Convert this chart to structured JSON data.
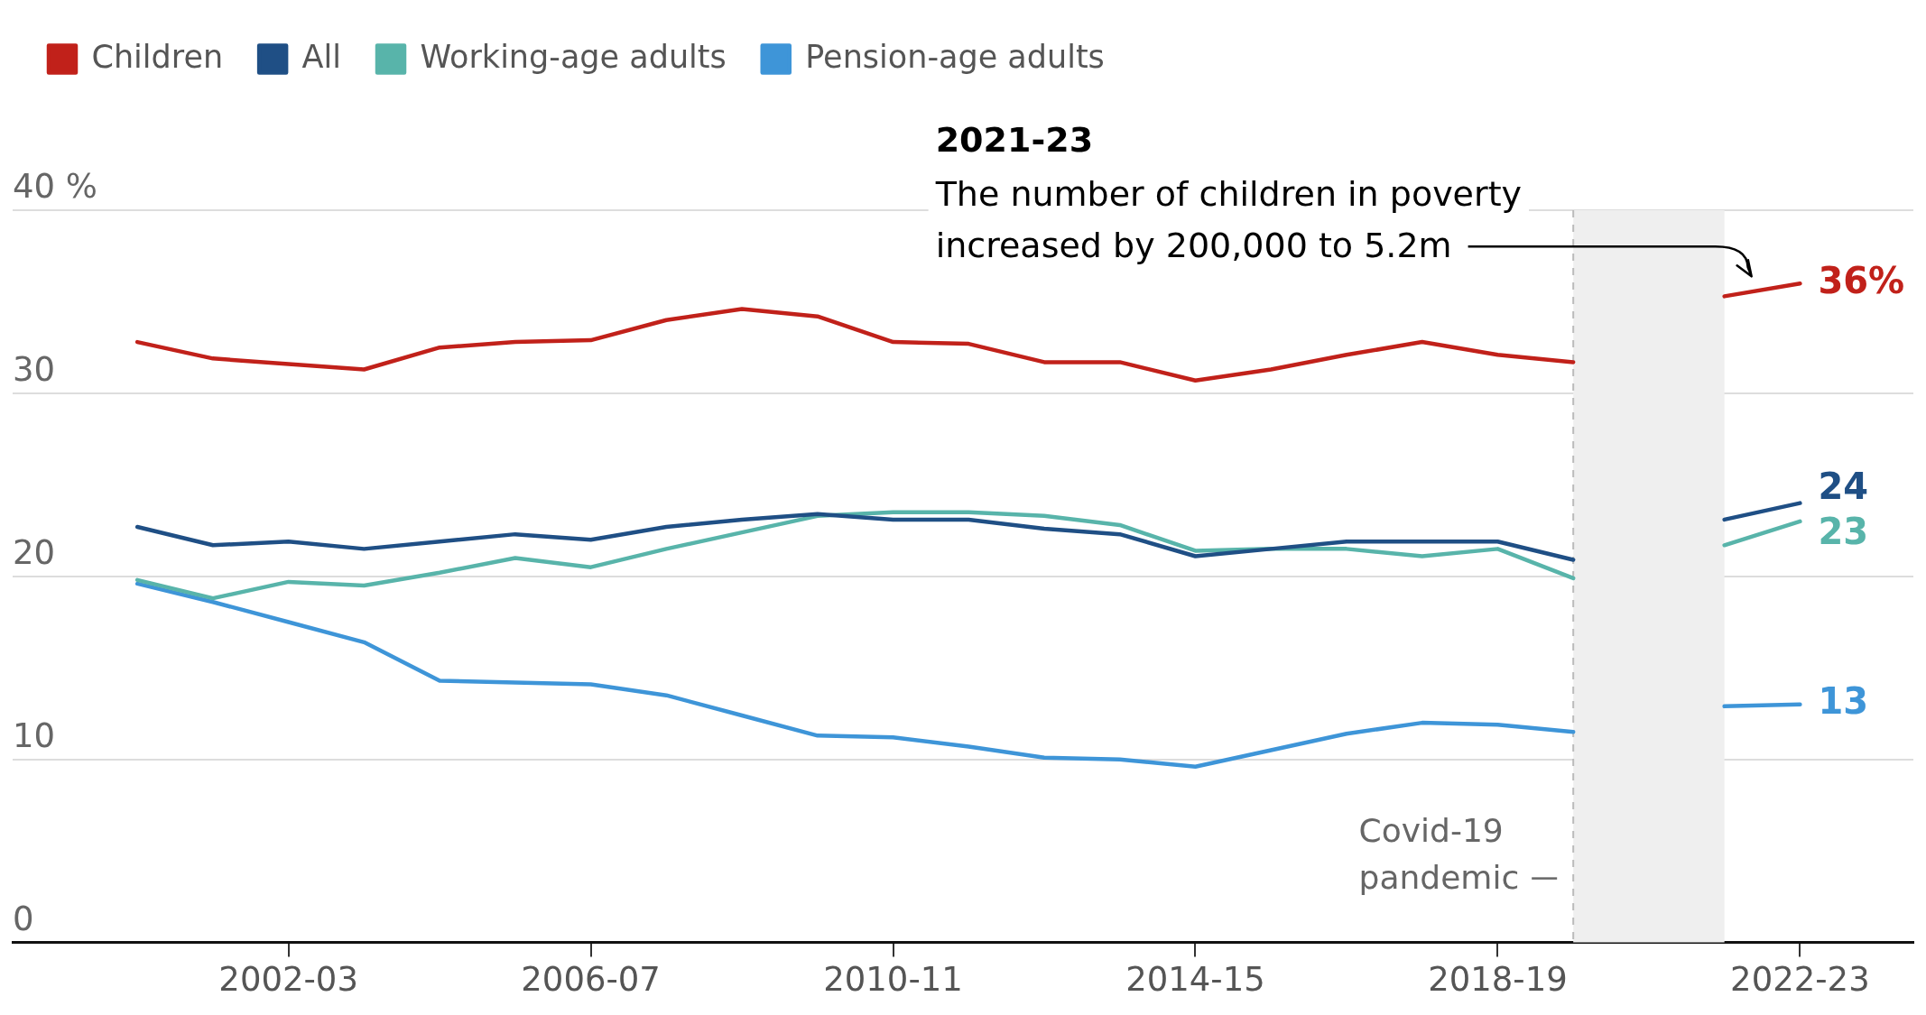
{
  "chart_data": {
    "type": "line",
    "categories": [
      null,
      null,
      "2002-03",
      null,
      null,
      null,
      "2006-07",
      null,
      null,
      null,
      "2010-11",
      null,
      null,
      null,
      "2014-15",
      null,
      null,
      null,
      "2018-19",
      null,
      null,
      null,
      "2022-23"
    ],
    "ylim": [
      0,
      40
    ],
    "yticks": [
      0,
      10,
      20,
      30,
      {
        "value": 40,
        "label": "40 %"
      }
    ],
    "grid": "y",
    "legend": "top left",
    "series": [
      {
        "name": "Children",
        "color": "#c1211a",
        "values": [
          32.8,
          31.9,
          31.6,
          31.3,
          32.5,
          32.8,
          32.9,
          34.0,
          34.6,
          34.2,
          32.8,
          32.7,
          31.7,
          31.7,
          30.7,
          31.3,
          32.1,
          32.8,
          32.1,
          31.7,
          null,
          35.3,
          36
        ],
        "value_labels": [
          null,
          null,
          null,
          null,
          null,
          null,
          null,
          null,
          null,
          null,
          null,
          null,
          null,
          null,
          null,
          null,
          null,
          null,
          null,
          null,
          null,
          null,
          "36%"
        ]
      },
      {
        "name": "All",
        "color": "#1f4f85",
        "values": [
          22.7,
          21.7,
          21.9,
          21.5,
          21.9,
          22.3,
          22.0,
          22.7,
          23.1,
          23.4,
          23.1,
          23.1,
          22.6,
          22.3,
          21.1,
          21.5,
          21.9,
          21.9,
          21.9,
          20.9,
          null,
          23.1,
          24
        ],
        "value_labels": [
          null,
          null,
          null,
          null,
          null,
          null,
          null,
          null,
          null,
          null,
          null,
          null,
          null,
          null,
          null,
          null,
          null,
          null,
          null,
          null,
          null,
          null,
          "24"
        ]
      },
      {
        "name": "Working-age adults",
        "color": "#58b4aa",
        "values": [
          19.8,
          18.8,
          19.7,
          19.5,
          20.2,
          21.0,
          20.5,
          21.5,
          22.4,
          23.3,
          23.5,
          23.5,
          23.3,
          22.8,
          21.4,
          21.5,
          21.5,
          21.1,
          21.5,
          19.9,
          null,
          21.7,
          23
        ],
        "value_labels": [
          null,
          null,
          null,
          null,
          null,
          null,
          null,
          null,
          null,
          null,
          null,
          null,
          null,
          null,
          null,
          null,
          null,
          null,
          null,
          null,
          null,
          null,
          "23"
        ]
      },
      {
        "name": "Pension-age adults",
        "color": "#3e95d8",
        "values": [
          19.6,
          18.6,
          17.5,
          16.4,
          14.3,
          14.2,
          14.1,
          13.5,
          12.4,
          11.3,
          11.2,
          10.7,
          10.1,
          10.0,
          9.6,
          10.5,
          11.4,
          12.0,
          11.9,
          11.5,
          null,
          12.9,
          13
        ],
        "value_labels": [
          null,
          null,
          null,
          null,
          null,
          null,
          null,
          null,
          null,
          null,
          null,
          null,
          null,
          null,
          null,
          null,
          null,
          null,
          null,
          null,
          null,
          null,
          "13"
        ]
      }
    ],
    "annotations": [
      "2021-23",
      "The number of children in poverty increased by 200,000 to 5.2m",
      "Covid-19 pandemic"
    ]
  }
}
